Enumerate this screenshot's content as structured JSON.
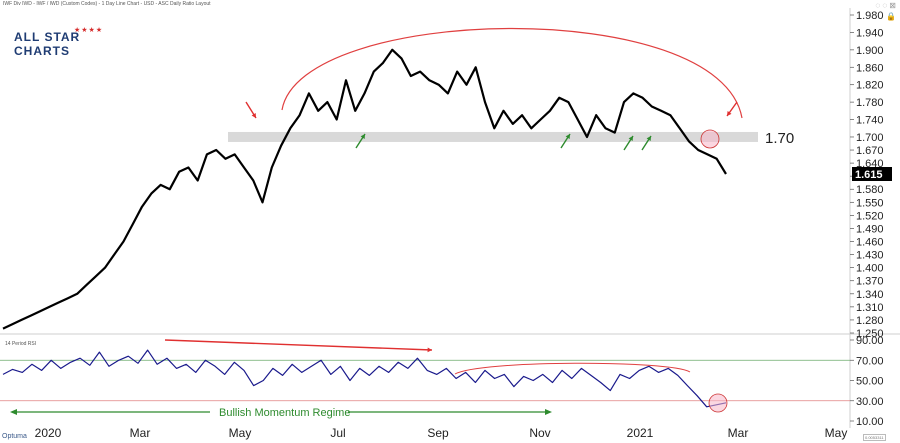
{
  "header": {
    "title": "IWF Div IWD - IWF / IWD (Custom Codes) - 1 Day Line Chart - USD - ASC Daily Ratio Layout"
  },
  "logo": {
    "line1": "ALL STAR",
    "line2": "CHARTS",
    "stars": "★★★★"
  },
  "toolbar": {
    "icons": "◌ ◌ ⊠"
  },
  "footer": {
    "brand": "Optuma",
    "ref": "0.0053311"
  },
  "colors": {
    "price": "#000000",
    "rsi": "#1a1a8c",
    "resistance": "#d9d9d9",
    "arc": "#e04040",
    "up_arrow": "#2e8b2e",
    "down_arrow": "#e03030",
    "circle": "#f7b7c8"
  },
  "chart_data": [
    {
      "type": "line",
      "name": "price",
      "y_axis": "right",
      "ylim": [
        1.25,
        1.98
      ],
      "ticks": [
        "1.980",
        "1.940",
        "1.900",
        "1.860",
        "1.820",
        "1.780",
        "1.740",
        "1.700",
        "1.670",
        "1.640",
        "1.610",
        "1.580",
        "1.550",
        "1.520",
        "1.490",
        "1.460",
        "1.430",
        "1.400",
        "1.370",
        "1.340",
        "1.310",
        "1.280",
        "1.250"
      ],
      "last_value_label": "1.615",
      "resistance_label": "1.70",
      "resistance_value": 1.7,
      "values": [
        1.26,
        1.27,
        1.28,
        1.29,
        1.3,
        1.31,
        1.32,
        1.33,
        1.34,
        1.36,
        1.38,
        1.4,
        1.43,
        1.46,
        1.5,
        1.54,
        1.57,
        1.59,
        1.58,
        1.62,
        1.63,
        1.6,
        1.66,
        1.67,
        1.65,
        1.66,
        1.63,
        1.6,
        1.55,
        1.63,
        1.68,
        1.72,
        1.75,
        1.8,
        1.76,
        1.78,
        1.74,
        1.83,
        1.76,
        1.8,
        1.85,
        1.87,
        1.9,
        1.88,
        1.84,
        1.85,
        1.83,
        1.82,
        1.8,
        1.85,
        1.82,
        1.86,
        1.78,
        1.72,
        1.76,
        1.73,
        1.75,
        1.72,
        1.74,
        1.76,
        1.79,
        1.78,
        1.74,
        1.7,
        1.75,
        1.72,
        1.71,
        1.78,
        1.8,
        1.79,
        1.77,
        1.76,
        1.75,
        1.72,
        1.69,
        1.67,
        1.66,
        1.65,
        1.615
      ]
    },
    {
      "type": "line",
      "name": "14 Period RSI",
      "y_axis": "right",
      "ylim": [
        10,
        90
      ],
      "ticks": [
        "90.00",
        "70.00",
        "50.00",
        "30.00",
        "10.00"
      ],
      "values": [
        56,
        61,
        58,
        66,
        60,
        70,
        62,
        68,
        72,
        65,
        78,
        64,
        70,
        74,
        67,
        80,
        66,
        72,
        62,
        66,
        58,
        70,
        64,
        56,
        68,
        60,
        45,
        50,
        62,
        55,
        66,
        58,
        64,
        70,
        56,
        64,
        50,
        62,
        55,
        64,
        58,
        68,
        62,
        72,
        60,
        56,
        62,
        52,
        58,
        48,
        60,
        52,
        56,
        44,
        54,
        50,
        56,
        48,
        60,
        52,
        62,
        55,
        48,
        40,
        56,
        52,
        60,
        64,
        58,
        62,
        55,
        45,
        35,
        24,
        26,
        28
      ]
    }
  ],
  "x_axis": {
    "labels": [
      "2020",
      "Mar",
      "May",
      "Jul",
      "Sep",
      "Nov",
      "2021",
      "Mar",
      "May"
    ]
  },
  "annotations": {
    "momentum_regime": "Bullish Momentum Regime"
  }
}
